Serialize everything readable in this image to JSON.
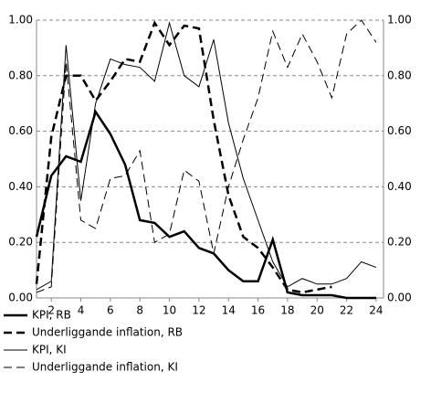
{
  "chart_data": {
    "type": "line",
    "x": [
      1,
      2,
      3,
      4,
      5,
      6,
      7,
      8,
      9,
      10,
      11,
      12,
      13,
      14,
      15,
      16,
      17,
      18,
      19,
      20,
      21,
      22,
      23,
      24
    ],
    "xlim": [
      1,
      24.5
    ],
    "xticks": [
      2,
      4,
      6,
      8,
      10,
      12,
      14,
      16,
      18,
      20,
      22,
      24
    ],
    "ylim": [
      0,
      1
    ],
    "yticks": [
      {
        "value": 0,
        "label": "0.00"
      },
      {
        "value": 0.2,
        "label": "0.20"
      },
      {
        "value": 0.4,
        "label": "0.40"
      },
      {
        "value": 0.6,
        "label": "0.60"
      },
      {
        "value": 0.8,
        "label": "0.80"
      },
      {
        "value": 1,
        "label": "1.00"
      }
    ],
    "grid": true,
    "legend": "bottom",
    "series": [
      {
        "name": "KPI, RB",
        "color": "#000000",
        "width": 2.5,
        "dash": "none",
        "values": [
          0.22,
          0.44,
          0.51,
          0.49,
          0.67,
          0.59,
          0.48,
          0.28,
          0.27,
          0.22,
          0.24,
          0.18,
          0.16,
          0.1,
          0.06,
          0.06,
          0.21,
          0.02,
          0.01,
          0.01,
          0.01,
          0.0,
          0.0,
          0.0
        ]
      },
      {
        "name": "Underliggande inflation, RB",
        "color": "#000000",
        "width": 2.5,
        "dash": "9 5",
        "values": [
          0.05,
          0.58,
          0.8,
          0.8,
          0.71,
          0.78,
          0.86,
          0.85,
          0.99,
          0.91,
          0.98,
          0.97,
          0.64,
          0.37,
          0.22,
          0.18,
          0.11,
          0.03,
          0.02,
          0.03,
          0.04,
          null,
          null,
          null
        ]
      },
      {
        "name": "KPI, KI",
        "color": "#000000",
        "width": 1,
        "dash": "none",
        "values": [
          0.03,
          0.06,
          0.91,
          0.35,
          0.7,
          0.86,
          0.84,
          0.83,
          0.78,
          0.99,
          0.8,
          0.76,
          0.93,
          0.63,
          0.43,
          0.28,
          0.13,
          0.04,
          0.07,
          0.05,
          0.05,
          0.07,
          0.13,
          0.11
        ]
      },
      {
        "name": "Underliggande inflation, KI",
        "color": "#000000",
        "width": 1,
        "dash": "9 5",
        "values": [
          0.02,
          0.04,
          0.85,
          0.28,
          0.25,
          0.43,
          0.44,
          0.53,
          0.2,
          0.23,
          0.46,
          0.42,
          0.16,
          0.4,
          0.57,
          0.72,
          0.96,
          0.83,
          0.95,
          0.85,
          0.72,
          0.95,
          1.0,
          0.92
        ]
      }
    ]
  }
}
